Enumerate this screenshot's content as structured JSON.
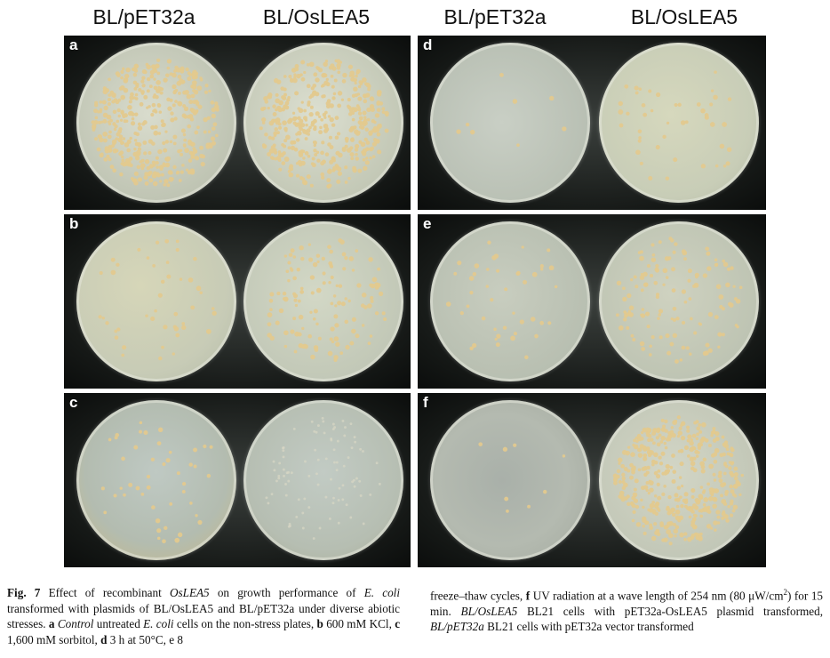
{
  "column_headers": [
    "BL/pET32a",
    "BL/OsLEA5",
    "BL/pET32a",
    "BL/OsLEA5"
  ],
  "panels": [
    {
      "letter": "a",
      "colony_density": [
        "heavy",
        "heavy"
      ]
    },
    {
      "letter": "b",
      "colony_density": [
        "sparse",
        "medium"
      ]
    },
    {
      "letter": "c",
      "colony_density": [
        "sparse",
        "faint"
      ]
    },
    {
      "letter": "d",
      "colony_density": [
        "very-sparse",
        "sparse"
      ]
    },
    {
      "letter": "e",
      "colony_density": [
        "sparse",
        "medium"
      ]
    },
    {
      "letter": "f",
      "colony_density": [
        "very-sparse",
        "heavy"
      ]
    }
  ],
  "caption": {
    "fig_label": "Fig. 7",
    "t1": "Effect of recombinant",
    "gene": "OsLEA5",
    "t2": "on growth performance of",
    "ecoli1": "E. coli",
    "t3": "transformed with plasmids of BL/OsLEA5 and BL/pET32a under diverse abiotic stresses.",
    "a": "a",
    "control": "Control",
    "t4": "untreated",
    "ecoli2": "E. coli",
    "t5": "cells on the non-stress plates,",
    "b": "b",
    "t6": "600 mM KCl,",
    "c": "c",
    "t7": "1,600 mM sorbitol,",
    "d": "d",
    "t8": "3 h at 50°C, e 8",
    "t9": "freeze–thaw cycles,",
    "f": "f",
    "t10": "UV radiation at a wave length of 254 nm (80 μW/cm",
    "sup": "2",
    "t11": ") for 15 min.",
    "bl_oslea5": "BL/OsLEA5",
    "t12": "BL21 cells with pET32a-OsLEA5 plasmid transformed,",
    "bl_pet32a": "BL/pET32a",
    "t13": "BL21 cells with pET32a vector transformed"
  }
}
